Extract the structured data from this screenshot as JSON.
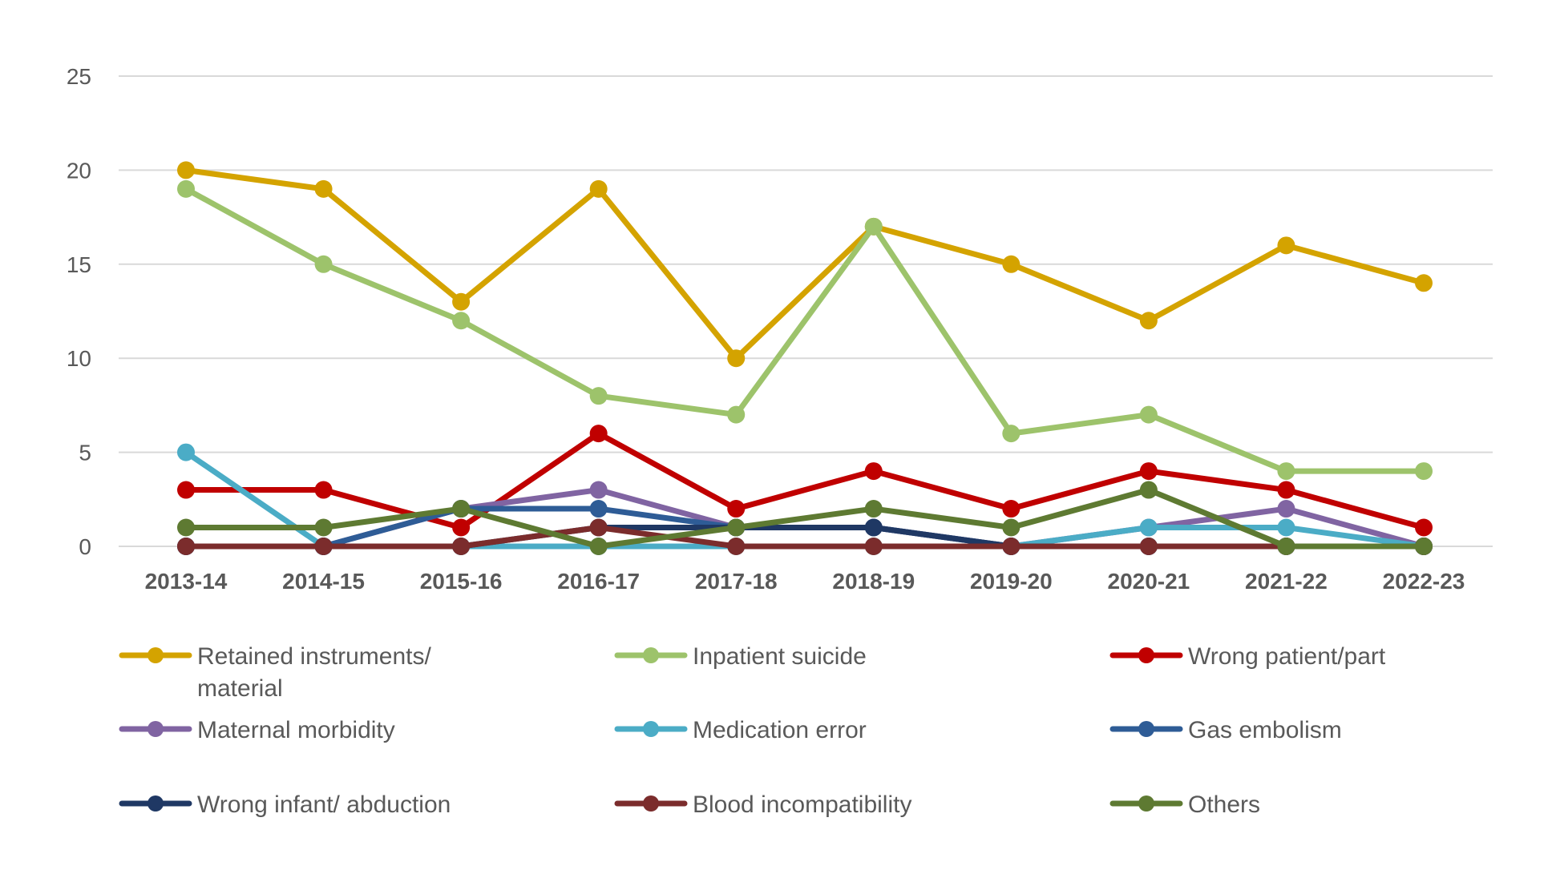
{
  "chart_data": {
    "type": "line",
    "title": "",
    "xlabel": "",
    "ylabel": "",
    "ylim": [
      0,
      25
    ],
    "yticks": [
      0,
      5,
      10,
      15,
      20,
      25
    ],
    "grid": true,
    "legend_position": "bottom",
    "categories": [
      "2013-14",
      "2014-15",
      "2015-16",
      "2016-17",
      "2017-18",
      "2018-19",
      "2019-20",
      "2020-21",
      "2021-22",
      "2022-23"
    ],
    "series": [
      {
        "name": "Retained instruments/ material",
        "legend_lines": [
          "Retained instruments/",
          "material"
        ],
        "color": "#D4A300",
        "values": [
          20,
          19,
          13,
          19,
          10,
          17,
          15,
          12,
          16,
          14
        ]
      },
      {
        "name": "Inpatient suicide",
        "legend_lines": [
          "Inpatient suicide"
        ],
        "color": "#9DC36B",
        "values": [
          19,
          15,
          12,
          8,
          7,
          17,
          6,
          7,
          4,
          4
        ]
      },
      {
        "name": "Wrong patient/part",
        "legend_lines": [
          "Wrong patient/part"
        ],
        "color": "#C00000",
        "values": [
          3,
          3,
          1,
          6,
          2,
          4,
          2,
          4,
          3,
          1
        ]
      },
      {
        "name": "Maternal morbidity",
        "legend_lines": [
          "Maternal morbidity"
        ],
        "color": "#8064A2",
        "values": [
          0,
          0,
          2,
          3,
          1,
          1,
          0,
          1,
          2,
          0
        ]
      },
      {
        "name": "Medication error",
        "legend_lines": [
          "Medication error"
        ],
        "color": "#4BACC6",
        "values": [
          5,
          0,
          0,
          0,
          0,
          0,
          0,
          1,
          1,
          0
        ]
      },
      {
        "name": "Gas embolism",
        "legend_lines": [
          "Gas embolism"
        ],
        "color": "#2E5C96",
        "values": [
          0,
          0,
          2,
          2,
          1,
          1,
          0,
          0,
          0,
          0
        ]
      },
      {
        "name": "Wrong infant/ abduction",
        "legend_lines": [
          "Wrong infant/ abduction"
        ],
        "color": "#1F3864",
        "values": [
          0,
          0,
          0,
          1,
          1,
          1,
          0,
          0,
          0,
          0
        ]
      },
      {
        "name": "Blood incompatibility",
        "legend_lines": [
          "Blood incompatibility"
        ],
        "color": "#7B2C2C",
        "values": [
          0,
          0,
          0,
          1,
          0,
          0,
          0,
          0,
          0,
          0
        ]
      },
      {
        "name": "Others",
        "legend_lines": [
          "Others"
        ],
        "color": "#5E7A32",
        "values": [
          1,
          1,
          2,
          0,
          1,
          2,
          1,
          3,
          0,
          0
        ]
      }
    ]
  }
}
